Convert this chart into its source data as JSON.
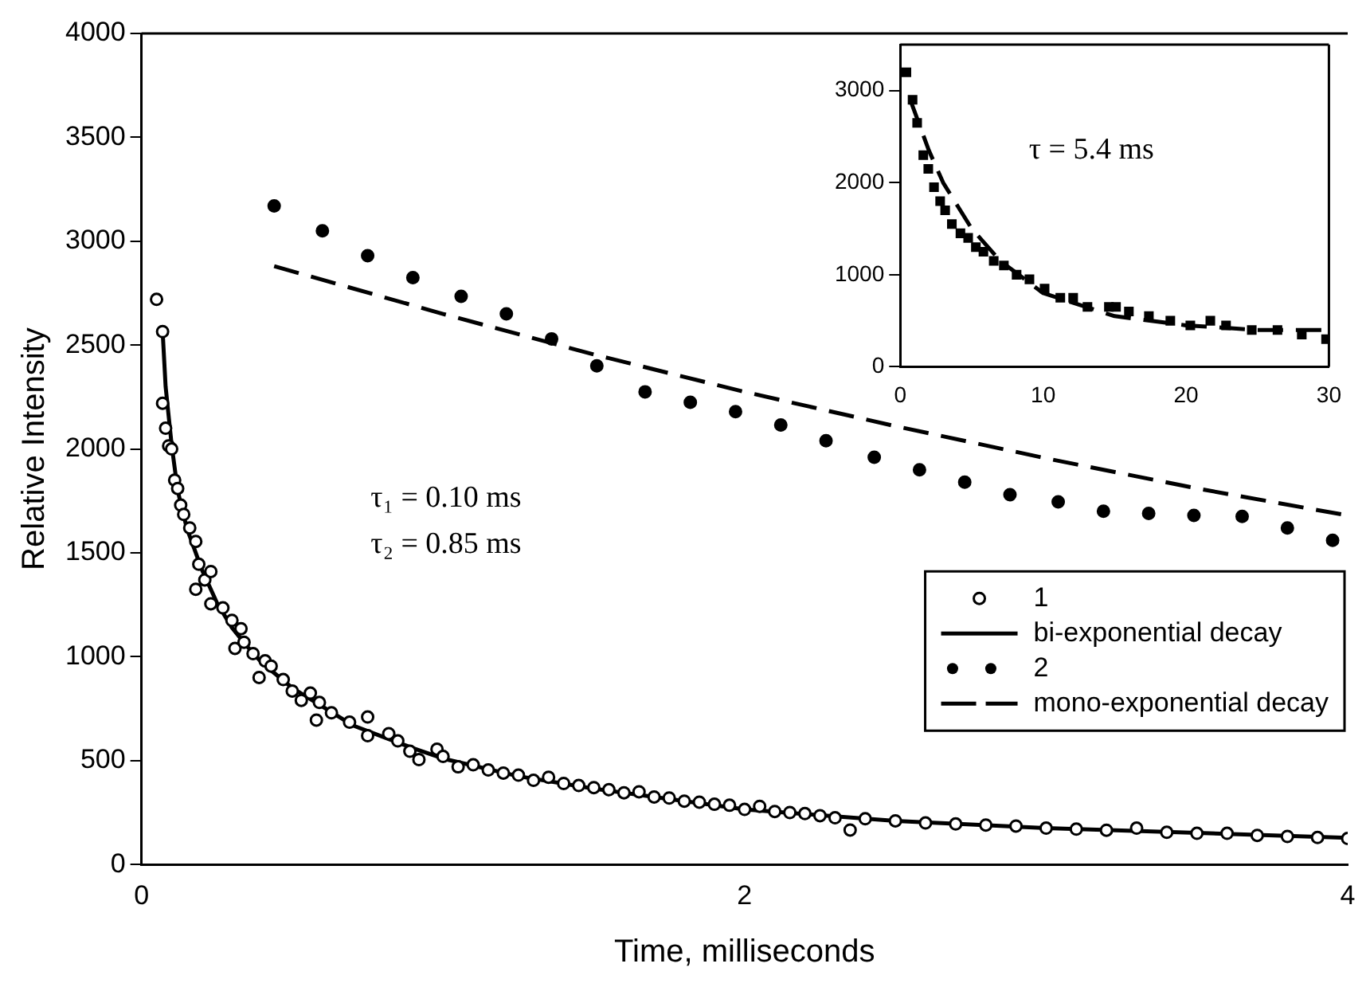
{
  "chart_data": [
    {
      "type": "scatter",
      "xlabel": "Time, milliseconds",
      "ylabel": "Relative Intensity",
      "xlim": [
        0,
        4
      ],
      "xticks": [
        0,
        2,
        4
      ],
      "ylim": [
        0,
        4000
      ],
      "yticks": [
        0,
        500,
        1000,
        1500,
        2000,
        2500,
        3000,
        3500,
        4000
      ],
      "grid": false,
      "legend": "bottom right",
      "annotations": [
        "τ₁ = 0.10 ms",
        "τ₂ = 0.85 ms"
      ],
      "series": [
        {
          "name": "1",
          "type": "scatter",
          "marker": "circle",
          "color": "#000000",
          "x": [
            0.05,
            0.07,
            0.07,
            0.08,
            0.09,
            0.1,
            0.11,
            0.12,
            0.13,
            0.14,
            0.16,
            0.18,
            0.18,
            0.19,
            0.21,
            0.23,
            0.23,
            0.27,
            0.3,
            0.31,
            0.33,
            0.34,
            0.37,
            0.39,
            0.41,
            0.43,
            0.47,
            0.5,
            0.53,
            0.56,
            0.58,
            0.59,
            0.63,
            0.69,
            0.75,
            0.75,
            0.82,
            0.85,
            0.89,
            0.92,
            0.98,
            1.0,
            1.05,
            1.1,
            1.15,
            1.2,
            1.25,
            1.3,
            1.35,
            1.4,
            1.45,
            1.5,
            1.55,
            1.6,
            1.65,
            1.7,
            1.75,
            1.8,
            1.85,
            1.9,
            1.95,
            2.0,
            2.05,
            2.1,
            2.15,
            2.2,
            2.25,
            2.3,
            2.35,
            2.4,
            2.5,
            2.6,
            2.7,
            2.8,
            2.9,
            3.0,
            3.1,
            3.2,
            3.3,
            3.4,
            3.5,
            3.6,
            3.7,
            3.8,
            3.9,
            4.0
          ],
          "values": [
            2720,
            2565,
            2220,
            2100,
            2015,
            2000,
            1850,
            1810,
            1730,
            1685,
            1620,
            1555,
            1325,
            1445,
            1370,
            1410,
            1255,
            1235,
            1175,
            1040,
            1135,
            1070,
            1015,
            900,
            980,
            955,
            890,
            835,
            790,
            825,
            695,
            780,
            730,
            685,
            620,
            710,
            630,
            595,
            545,
            505,
            555,
            520,
            470,
            480,
            455,
            440,
            430,
            405,
            420,
            390,
            380,
            370,
            360,
            345,
            350,
            325,
            320,
            305,
            300,
            290,
            285,
            265,
            280,
            255,
            250,
            245,
            235,
            225,
            166,
            220,
            210,
            200,
            195,
            190,
            185,
            175,
            170,
            165,
            175,
            155,
            150,
            150,
            140,
            135,
            130,
            125
          ]
        },
        {
          "name": "bi-exponential decay",
          "type": "line",
          "line_style": "solid",
          "color": "#000000",
          "x": [
            0.07,
            0.08,
            0.1,
            0.12,
            0.15,
            0.2,
            0.25,
            0.3,
            0.35,
            0.4,
            0.5,
            0.6,
            0.7,
            0.8,
            0.9,
            1.0,
            1.25,
            1.5,
            1.75,
            2.0,
            2.5,
            3.0,
            3.5,
            4.0
          ],
          "values": [
            2570,
            2300,
            2020,
            1800,
            1620,
            1420,
            1260,
            1140,
            1050,
            970,
            850,
            760,
            670,
            615,
            560,
            510,
            425,
            365,
            315,
            265,
            210,
            175,
            152,
            128
          ]
        },
        {
          "name": "2",
          "type": "scatter",
          "marker": "circle",
          "color": "#000000",
          "x": [
            0.44,
            0.6,
            0.75,
            0.9,
            1.06,
            1.21,
            1.36,
            1.51,
            1.67,
            1.82,
            1.97,
            2.12,
            2.27,
            2.43,
            2.58,
            2.73,
            2.88,
            3.04,
            3.19,
            3.34,
            3.49,
            3.65,
            3.8,
            3.95
          ],
          "values": [
            3170,
            3050,
            2930,
            2825,
            2735,
            2650,
            2530,
            2400,
            2275,
            2225,
            2180,
            2115,
            2040,
            1960,
            1900,
            1840,
            1780,
            1745,
            1700,
            1690,
            1680,
            1675,
            1620,
            1560
          ]
        },
        {
          "name": "mono-exponential decay",
          "type": "line",
          "line_style": "dashed",
          "color": "#000000",
          "x": [
            0.44,
            1.0,
            1.5,
            2.0,
            2.5,
            3.0,
            3.5,
            4.0
          ],
          "values": [
            2880,
            2650,
            2455,
            2275,
            2110,
            1955,
            1810,
            1680
          ]
        }
      ]
    },
    {
      "type": "scatter",
      "xlim": [
        0,
        30
      ],
      "xticks": [
        0,
        10,
        20,
        30
      ],
      "ylim": [
        0,
        3500
      ],
      "yticks": [
        0,
        1000,
        2000,
        3000
      ],
      "grid": false,
      "annotations": [
        "τ = 5.4 ms"
      ],
      "series": [
        {
          "type": "scatter",
          "marker": "square",
          "color": "#000000",
          "x": [
            0.43,
            0.86,
            1.18,
            1.61,
            1.96,
            2.36,
            2.79,
            3.14,
            3.61,
            4.21,
            4.75,
            5.29,
            5.82,
            6.54,
            7.25,
            8.14,
            9.04,
            10.1,
            11.2,
            12.1,
            13.1,
            14.6,
            15.1,
            16.0,
            17.4,
            18.9,
            20.3,
            21.7,
            22.8,
            24.6,
            26.4,
            28.1,
            29.8
          ],
          "values": [
            3200,
            2900,
            2650,
            2300,
            2150,
            1950,
            1800,
            1700,
            1550,
            1450,
            1400,
            1300,
            1250,
            1150,
            1100,
            1000,
            950,
            850,
            750,
            750,
            650,
            650,
            650,
            600,
            550,
            500,
            450,
            500,
            450,
            400,
            400,
            350,
            300
          ]
        },
        {
          "type": "line",
          "line_style": "dashed",
          "color": "#000000",
          "x": [
            0.7,
            2,
            3,
            4,
            5,
            7,
            10,
            15,
            20,
            25,
            30
          ],
          "values": [
            2900,
            2350,
            2000,
            1750,
            1500,
            1150,
            800,
            550,
            450,
            400,
            400
          ]
        }
      ]
    }
  ]
}
